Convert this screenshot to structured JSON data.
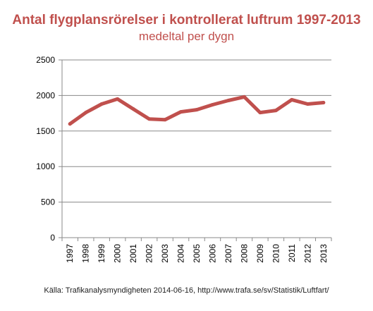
{
  "chart_data": {
    "type": "line",
    "title": "Antal flygplansrörelser i kontrollerat luftrum 1997-2013",
    "subtitle": "medeltal per dygn",
    "x": [
      "1997",
      "1998",
      "1999",
      "2000",
      "2001",
      "2002",
      "2003",
      "2004",
      "2005",
      "2006",
      "2007",
      "2008",
      "2009",
      "2010",
      "2011",
      "2012",
      "2013"
    ],
    "series": [
      {
        "values": [
          1600,
          1760,
          1880,
          1950,
          1810,
          1670,
          1660,
          1770,
          1800,
          1870,
          1930,
          1980,
          1760,
          1790,
          1940,
          1880,
          1900
        ]
      }
    ],
    "yticks": [
      "0",
      "500",
      "1000",
      "1500",
      "2000",
      "2500"
    ],
    "ylim": [
      0,
      2500
    ],
    "grid": true,
    "line_color": "#c0504d",
    "source": "Källa: Trafikanalysmyndigheten 2014-06-16,  http://www.trafa.se/sv/Statistik/Luftfart/"
  }
}
